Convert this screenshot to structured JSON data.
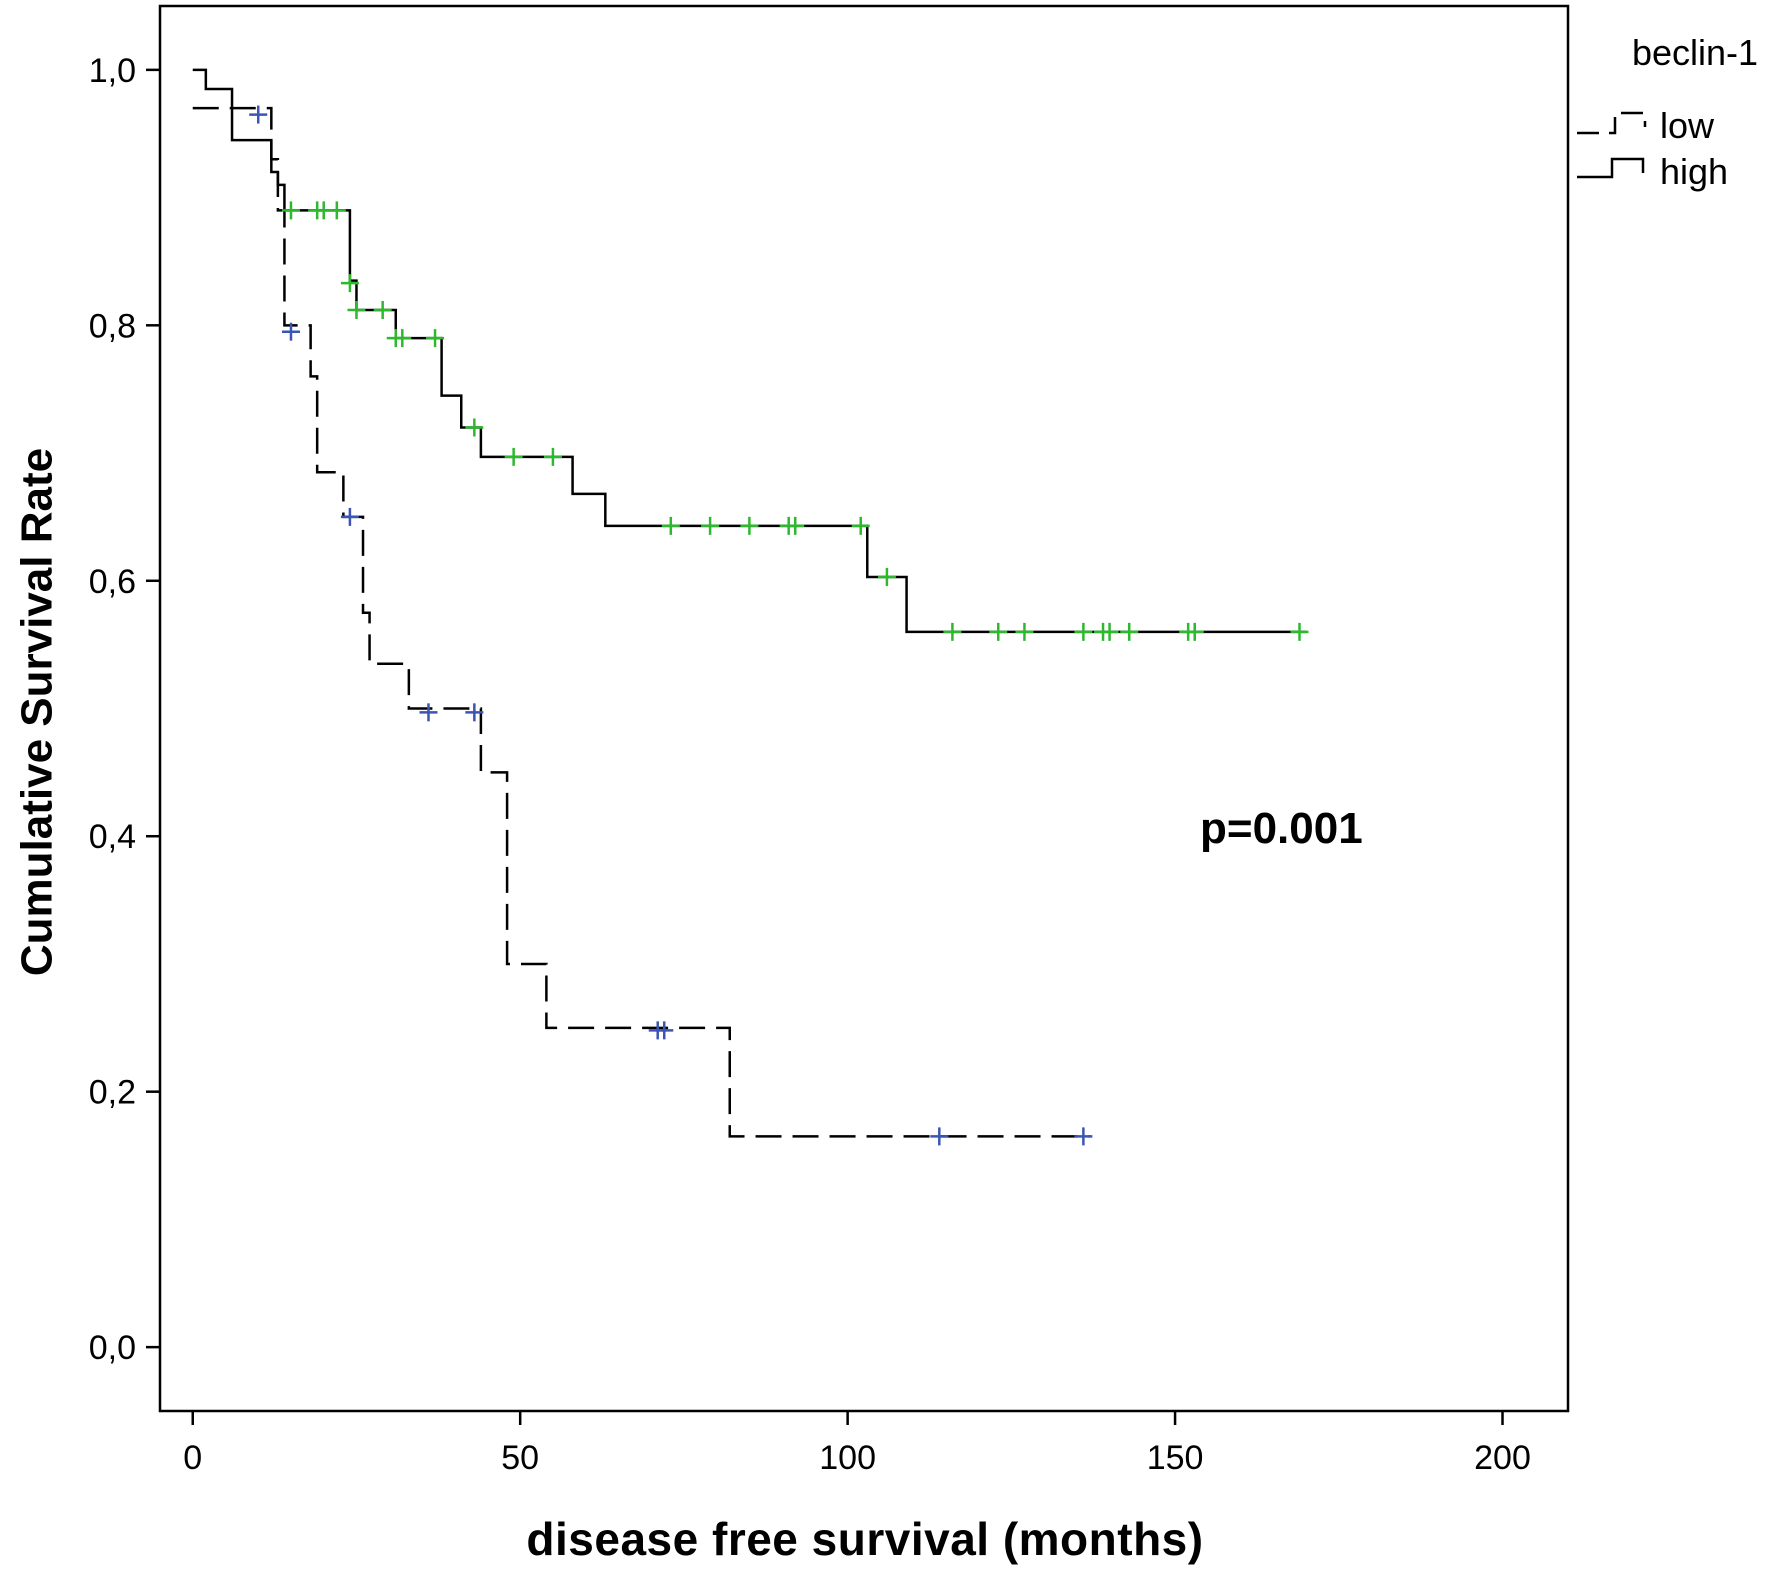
{
  "chart_data": {
    "type": "line",
    "subtype": "kaplan-meier",
    "title": "",
    "xlabel": "disease free survival (months)",
    "ylabel": "Cumulative Survival Rate",
    "xlim": [
      -5,
      210
    ],
    "ylim": [
      -0.05,
      1.05
    ],
    "x_ticks": [
      0,
      50,
      100,
      150,
      200
    ],
    "x_tick_labels": [
      "0",
      "50",
      "100",
      "150",
      "200"
    ],
    "y_ticks": [
      0.0,
      0.2,
      0.4,
      0.6,
      0.8,
      1.0
    ],
    "y_tick_labels": [
      "0,0",
      "0,2",
      "0,4",
      "0,6",
      "0,8",
      "1,0"
    ],
    "legend": {
      "title": "beclin-1",
      "placement": "top-right"
    },
    "annotation": "p=0.001",
    "series": [
      {
        "name": "low",
        "style": "dashed",
        "censor_color": "#3a55b4",
        "steps": [
          [
            0,
            0.97
          ],
          [
            11,
            0.97
          ],
          [
            12,
            0.93
          ],
          [
            13,
            0.89
          ],
          [
            14,
            0.8
          ],
          [
            18,
            0.76
          ],
          [
            19,
            0.685
          ],
          [
            23,
            0.65
          ],
          [
            26,
            0.575
          ],
          [
            27,
            0.535
          ],
          [
            33,
            0.5
          ],
          [
            44,
            0.45
          ],
          [
            48,
            0.3
          ],
          [
            54,
            0.25
          ],
          [
            82,
            0.165
          ],
          [
            137,
            0.165
          ]
        ],
        "censored": [
          [
            10,
            0.965
          ],
          [
            15,
            0.795
          ],
          [
            24,
            0.65
          ],
          [
            36,
            0.497
          ],
          [
            43,
            0.497
          ],
          [
            71,
            0.248
          ],
          [
            72,
            0.248
          ],
          [
            114,
            0.165
          ],
          [
            136,
            0.165
          ]
        ]
      },
      {
        "name": "high",
        "style": "solid",
        "censor_color": "#2eb82e",
        "steps": [
          [
            0,
            1.0
          ],
          [
            2,
            0.985
          ],
          [
            6,
            0.945
          ],
          [
            11,
            0.945
          ],
          [
            12,
            0.92
          ],
          [
            13,
            0.91
          ],
          [
            14,
            0.89
          ],
          [
            24,
            0.835
          ],
          [
            25,
            0.812
          ],
          [
            31,
            0.79
          ],
          [
            38,
            0.745
          ],
          [
            41,
            0.72
          ],
          [
            44,
            0.697
          ],
          [
            58,
            0.668
          ],
          [
            63,
            0.643
          ],
          [
            103,
            0.603
          ],
          [
            109,
            0.56
          ],
          [
            170,
            0.56
          ]
        ],
        "censored": [
          [
            15,
            0.89
          ],
          [
            19,
            0.89
          ],
          [
            20,
            0.89
          ],
          [
            22,
            0.89
          ],
          [
            24,
            0.833
          ],
          [
            25,
            0.812
          ],
          [
            29,
            0.812
          ],
          [
            31,
            0.79
          ],
          [
            32,
            0.79
          ],
          [
            37,
            0.79
          ],
          [
            43,
            0.72
          ],
          [
            49,
            0.697
          ],
          [
            55,
            0.697
          ],
          [
            73,
            0.643
          ],
          [
            79,
            0.643
          ],
          [
            85,
            0.643
          ],
          [
            91,
            0.643
          ],
          [
            92,
            0.643
          ],
          [
            102,
            0.643
          ],
          [
            106,
            0.603
          ],
          [
            116,
            0.56
          ],
          [
            123,
            0.56
          ],
          [
            127,
            0.56
          ],
          [
            136,
            0.56
          ],
          [
            139,
            0.56
          ],
          [
            140,
            0.56
          ],
          [
            143,
            0.56
          ],
          [
            152,
            0.56
          ],
          [
            153,
            0.56
          ],
          [
            169,
            0.56
          ]
        ]
      }
    ]
  }
}
